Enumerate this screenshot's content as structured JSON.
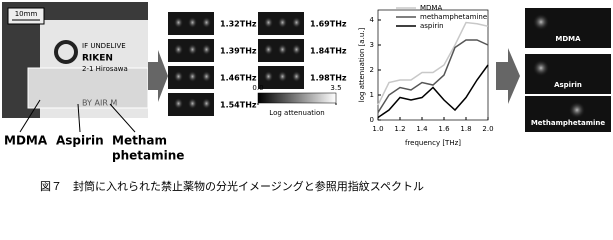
{
  "photo": {
    "scale": "10mm",
    "texts": [
      "IF UNDELIVE",
      "RIKEN",
      "2-1 Hirosawa",
      "BY AIR M"
    ],
    "labels": [
      "MDMA",
      "Aspirin",
      "Metham",
      "phetamine"
    ]
  },
  "thz_images": [
    "1.32THz",
    "1.39THz",
    "1.46THz",
    "1.54THz",
    "1.69THz",
    "1.84THz",
    "1.98THz"
  ],
  "colorbar": {
    "ticks": [
      {
        "value": 0,
        "label": "0.0"
      },
      3.5
    ],
    "label": "Log attenuation"
  },
  "chart_data": {
    "type": "line",
    "x_label": "frequency [THz]",
    "y_label": "log attenuation [a.u.]",
    "x": [
      1.0,
      1.1,
      1.2,
      1.3,
      1.4,
      1.5,
      1.6,
      1.7,
      1.8,
      1.9,
      2.0
    ],
    "series": [
      {
        "name": "MDMA",
        "color": "#c8c8c8",
        "values": [
          0.6,
          1.5,
          1.6,
          1.6,
          1.9,
          1.9,
          2.2,
          3.0,
          3.9,
          3.85,
          3.75
        ]
      },
      {
        "name": "methamphetamine",
        "color": "#555555",
        "values": [
          0.3,
          1.0,
          1.3,
          1.2,
          1.5,
          1.4,
          1.8,
          2.9,
          3.2,
          3.2,
          3.0
        ]
      },
      {
        "name": "aspirin",
        "color": "#000000",
        "values": [
          0.1,
          0.4,
          0.9,
          0.8,
          0.9,
          1.3,
          0.8,
          0.4,
          0.9,
          1.6,
          2.2
        ]
      }
    ],
    "xlim": [
      1.0,
      2.0
    ],
    "xticks": [
      {
        "value": 1.0,
        "label": "1.0"
      },
      1.2,
      1.4,
      1.6,
      1.8,
      {
        "value": 2.0,
        "label": "2.0"
      }
    ],
    "ylim": [
      0,
      4.4
    ],
    "yticks": [
      0,
      1,
      2,
      3,
      4
    ]
  },
  "results": [
    "MDMA",
    "Aspirin",
    "Methamphetamine"
  ],
  "caption": "図７　封筒に入れられた禁止薬物の分光イメージングと参照用指紋スペクトル"
}
